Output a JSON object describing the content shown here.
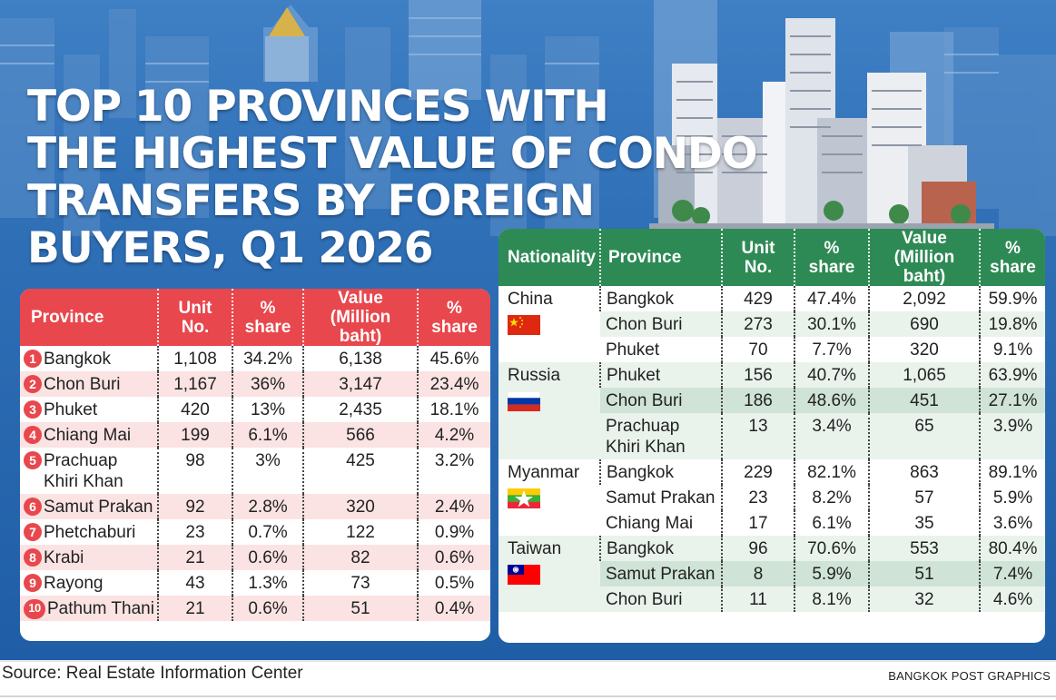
{
  "title_lines": [
    "TOP 10 PROVINCES WITH",
    "THE HIGHEST VALUE OF CONDO",
    "TRANSFERS BY FOREIGN",
    "BUYERS, Q1 2026"
  ],
  "colors": {
    "banner": "#2f6fb6",
    "left_header": "#e8474d",
    "left_alt_row": "#fbe3e3",
    "right_header": "#2e8a55",
    "right_alt_row": "#e9f3ec"
  },
  "chart_data": [
    {
      "type": "table",
      "columns": [
        "Province",
        "Unit No.",
        "% share",
        "Value (Million baht)",
        "% share"
      ],
      "header": {
        "province": "Province",
        "unit": "Unit No.",
        "unit_share": [
          "%",
          "share"
        ],
        "value": [
          "Value",
          "(Million baht)"
        ],
        "value_share": [
          "%",
          "share"
        ]
      },
      "rows": [
        {
          "rank": "1",
          "province": "Bangkok",
          "unit": "1,108",
          "unit_share": "34.2%",
          "value": "6,138",
          "value_share": "45.6%"
        },
        {
          "rank": "2",
          "province": "Chon Buri",
          "unit": "1,167",
          "unit_share": "36%",
          "value": "3,147",
          "value_share": "23.4%"
        },
        {
          "rank": "3",
          "province": "Phuket",
          "unit": "420",
          "unit_share": "13%",
          "value": "2,435",
          "value_share": "18.1%"
        },
        {
          "rank": "4",
          "province": "Chiang Mai",
          "unit": "199",
          "unit_share": "6.1%",
          "value": "566",
          "value_share": "4.2%"
        },
        {
          "rank": "5",
          "province": "Prachuap Khiri Khan",
          "unit": "98",
          "unit_share": "3%",
          "value": "425",
          "value_share": "3.2%"
        },
        {
          "rank": "6",
          "province": "Samut Prakan",
          "unit": "92",
          "unit_share": "2.8%",
          "value": "320",
          "value_share": "2.4%"
        },
        {
          "rank": "7",
          "province": "Phetchaburi",
          "unit": "23",
          "unit_share": "0.7%",
          "value": "122",
          "value_share": "0.9%"
        },
        {
          "rank": "8",
          "province": "Krabi",
          "unit": "21",
          "unit_share": "0.6%",
          "value": "82",
          "value_share": "0.6%"
        },
        {
          "rank": "9",
          "province": "Rayong",
          "unit": "43",
          "unit_share": "1.3%",
          "value": "73",
          "value_share": "0.5%"
        },
        {
          "rank": "10",
          "province": "Pathum Thani",
          "unit": "21",
          "unit_share": "0.6%",
          "value": "51",
          "value_share": "0.4%"
        }
      ]
    },
    {
      "type": "table",
      "columns": [
        "Nationality",
        "Province",
        "Unit No.",
        "% share",
        "Value (Million baht)",
        "% share"
      ],
      "header": {
        "nationality": "Nationality",
        "province": "Province",
        "unit": "Unit No.",
        "unit_share": [
          "%",
          "share"
        ],
        "value": [
          "Value",
          "(Million baht)"
        ],
        "value_share": [
          "%",
          "share"
        ]
      },
      "groups": [
        {
          "nationality": "China",
          "flag": "china-flag-icon",
          "rows": [
            {
              "province": "Bangkok",
              "unit": "429",
              "unit_share": "47.4%",
              "value": "2,092",
              "value_share": "59.9%"
            },
            {
              "province": "Chon Buri",
              "unit": "273",
              "unit_share": "30.1%",
              "value": "690",
              "value_share": "19.8%"
            },
            {
              "province": "Phuket",
              "unit": "70",
              "unit_share": "7.7%",
              "value": "320",
              "value_share": "9.1%"
            }
          ]
        },
        {
          "nationality": "Russia",
          "flag": "russia-flag-icon",
          "rows": [
            {
              "province": "Phuket",
              "unit": "156",
              "unit_share": "40.7%",
              "value": "1,065",
              "value_share": "63.9%"
            },
            {
              "province": "Chon Buri",
              "unit": "186",
              "unit_share": "48.6%",
              "value": "451",
              "value_share": "27.1%"
            },
            {
              "province": "Prachuap Khiri Khan",
              "unit": "13",
              "unit_share": "3.4%",
              "value": "65",
              "value_share": "3.9%"
            }
          ]
        },
        {
          "nationality": "Myanmar",
          "flag": "myanmar-flag-icon",
          "rows": [
            {
              "province": "Bangkok",
              "unit": "229",
              "unit_share": "82.1%",
              "value": "863",
              "value_share": "89.1%"
            },
            {
              "province": "Samut Prakan",
              "unit": "23",
              "unit_share": "8.2%",
              "value": "57",
              "value_share": "5.9%"
            },
            {
              "province": "Chiang Mai",
              "unit": "17",
              "unit_share": "6.1%",
              "value": "35",
              "value_share": "3.6%"
            }
          ]
        },
        {
          "nationality": "Taiwan",
          "flag": "taiwan-flag-icon",
          "rows": [
            {
              "province": "Bangkok",
              "unit": "96",
              "unit_share": "70.6%",
              "value": "553",
              "value_share": "80.4%"
            },
            {
              "province": "Samut Prakan",
              "unit": "8",
              "unit_share": "5.9%",
              "value": "51",
              "value_share": "7.4%"
            },
            {
              "province": "Chon Buri",
              "unit": "11",
              "unit_share": "8.1%",
              "value": "32",
              "value_share": "4.6%"
            }
          ]
        }
      ]
    }
  ],
  "footer": {
    "source": "Source: Real Estate Information Center",
    "credit": "BANGKOK POST GRAPHICS"
  }
}
